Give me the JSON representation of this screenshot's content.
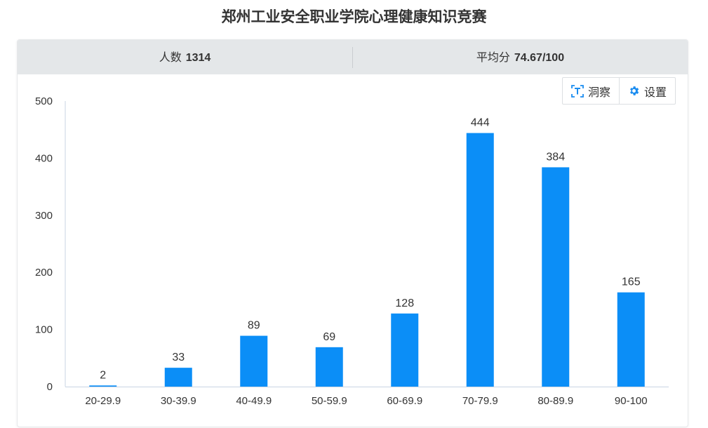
{
  "page": {
    "title": "郑州工业安全职业学院心理健康知识竞赛"
  },
  "stats": {
    "count_label": "人数",
    "count_value": "1314",
    "avg_label": "平均分",
    "avg_value": "74.67/100"
  },
  "toolbar": {
    "insight_label": "洞察",
    "settings_label": "设置"
  },
  "colors": {
    "bar": "#0b8ef7",
    "axis": "#c8d4e3",
    "header_bg": "#e4e7e9"
  },
  "chart_data": {
    "type": "bar",
    "title": "",
    "xlabel": "",
    "ylabel": "",
    "categories": [
      "20-29.9",
      "30-39.9",
      "40-49.9",
      "50-59.9",
      "60-69.9",
      "70-79.9",
      "80-89.9",
      "90-100"
    ],
    "values": [
      2,
      33,
      89,
      69,
      128,
      444,
      384,
      165
    ],
    "ylim": [
      0,
      500
    ],
    "yticks": [
      0,
      100,
      200,
      300,
      400,
      500
    ],
    "data_labels": true,
    "grid": false,
    "legend": "none"
  }
}
